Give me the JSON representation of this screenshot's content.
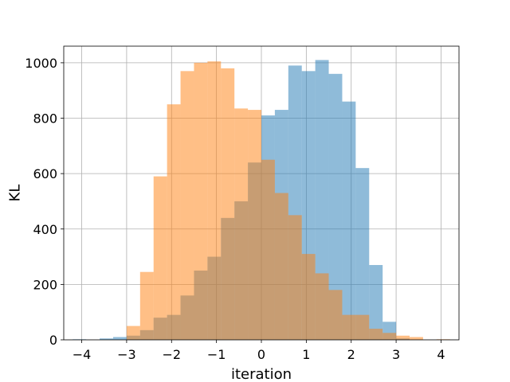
{
  "chart_data": {
    "type": "bar",
    "xlabel": "iteration",
    "ylabel": "KL",
    "xlim": [
      -4.4,
      4.4
    ],
    "ylim": [
      0,
      1060
    ],
    "xticks": [
      -4,
      -3,
      -2,
      -1,
      0,
      1,
      2,
      3,
      4
    ],
    "xtick_labels": [
      "−4",
      "−3",
      "−2",
      "−1",
      "0",
      "1",
      "2",
      "3",
      "4"
    ],
    "yticks": [
      0,
      200,
      400,
      600,
      800,
      1000
    ],
    "ytick_labels": [
      "0",
      "200",
      "400",
      "600",
      "800",
      "1000"
    ],
    "grid": true,
    "bin_width": 0.3,
    "series": [
      {
        "color": "#1f77b4",
        "alpha": 0.5,
        "bin_starts": [
          -4.2,
          -3.9,
          -3.6,
          -3.3,
          -3.0,
          -2.7,
          -2.4,
          -2.1,
          -1.8,
          -1.5,
          -1.2,
          -0.9,
          -0.6,
          -0.3,
          0.0,
          0.3,
          0.6,
          0.9,
          1.2,
          1.5,
          1.8,
          2.1,
          2.4,
          2.7,
          3.0
        ],
        "values": [
          2,
          0,
          5,
          10,
          15,
          35,
          80,
          90,
          160,
          250,
          300,
          440,
          500,
          640,
          810,
          830,
          990,
          970,
          1010,
          960,
          860,
          620,
          270,
          65,
          5
        ]
      },
      {
        "color": "#ff7f0e",
        "alpha": 0.5,
        "bin_starts": [
          -3.0,
          -2.7,
          -2.4,
          -2.1,
          -1.8,
          -1.5,
          -1.2,
          -0.9,
          -0.6,
          -0.3,
          0.0,
          0.3,
          0.6,
          0.9,
          1.2,
          1.5,
          1.8,
          2.1,
          2.4,
          2.7,
          3.0,
          3.3,
          3.6,
          3.9
        ],
        "values": [
          50,
          245,
          590,
          850,
          970,
          1000,
          1005,
          980,
          835,
          830,
          650,
          530,
          450,
          310,
          240,
          180,
          90,
          90,
          40,
          25,
          15,
          10,
          0,
          2
        ]
      }
    ]
  }
}
